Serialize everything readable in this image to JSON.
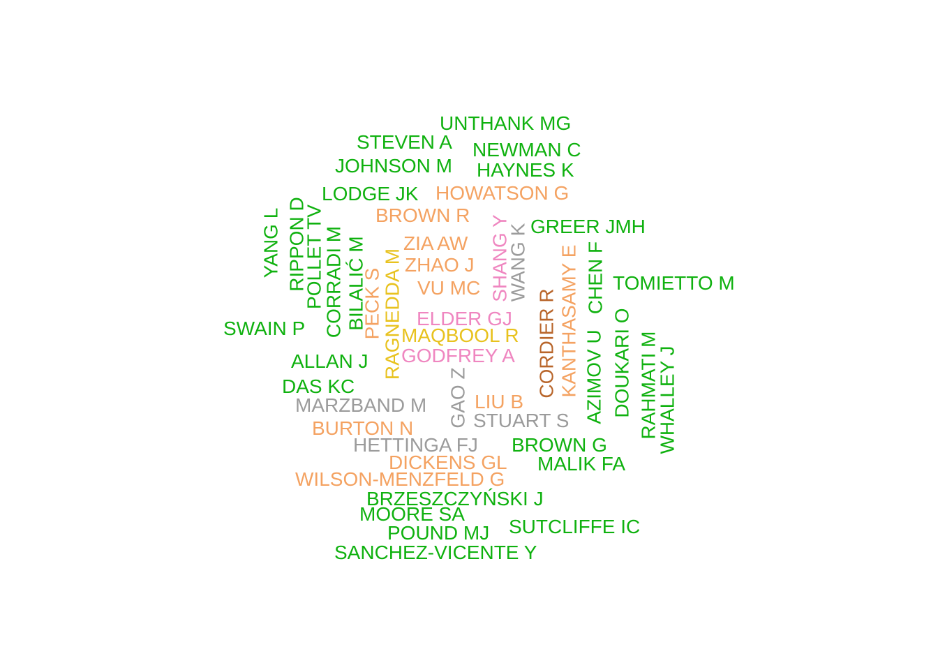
{
  "chart_data": {
    "type": "wordcloud",
    "palette": {
      "green": "#0fb10f",
      "orange": "#f4a261",
      "pink": "#ef86c0",
      "gray": "#9b9b9b",
      "yellow": "#e8c21e",
      "brown": "#b8652a"
    },
    "words": [
      {
        "text": "UNTHANK MG",
        "color": "green"
      },
      {
        "text": "STEVEN A",
        "color": "green"
      },
      {
        "text": "NEWMAN C",
        "color": "green"
      },
      {
        "text": "JOHNSON M",
        "color": "green"
      },
      {
        "text": "HAYNES K",
        "color": "green"
      },
      {
        "text": "LODGE JK",
        "color": "green"
      },
      {
        "text": "HOWATSON G",
        "color": "orange"
      },
      {
        "text": "BROWN R",
        "color": "orange"
      },
      {
        "text": "SHANG Y",
        "color": "pink"
      },
      {
        "text": "WANG K",
        "color": "gray"
      },
      {
        "text": "GREER JMH",
        "color": "green"
      },
      {
        "text": "YANG L",
        "color": "green"
      },
      {
        "text": "RIPPON D",
        "color": "green"
      },
      {
        "text": "POLLET TV",
        "color": "green"
      },
      {
        "text": "CORRADI M",
        "color": "green"
      },
      {
        "text": "BILALIĆ M",
        "color": "green"
      },
      {
        "text": "ZIA AW",
        "color": "orange"
      },
      {
        "text": "ZHAO J",
        "color": "orange"
      },
      {
        "text": "VU MC",
        "color": "orange"
      },
      {
        "text": "RAGNEDDA M",
        "color": "yellow"
      },
      {
        "text": "PECK S",
        "color": "orange"
      },
      {
        "text": "KANTHASAMY E",
        "color": "orange"
      },
      {
        "text": "CHEN F",
        "color": "green"
      },
      {
        "text": "TOMIETTO M",
        "color": "green"
      },
      {
        "text": "CORDIER R",
        "color": "brown"
      },
      {
        "text": "ELDER GJ",
        "color": "pink"
      },
      {
        "text": "SWAIN P",
        "color": "green"
      },
      {
        "text": "MAQBOOL R",
        "color": "yellow"
      },
      {
        "text": "GODFREY A",
        "color": "pink"
      },
      {
        "text": "AZIMOV U",
        "color": "green"
      },
      {
        "text": "DOUKARI O",
        "color": "green"
      },
      {
        "text": "ALLAN J",
        "color": "green"
      },
      {
        "text": "GAO Z",
        "color": "gray"
      },
      {
        "text": "RAHMATI M",
        "color": "green"
      },
      {
        "text": "WHALLEY J",
        "color": "green"
      },
      {
        "text": "DAS KC",
        "color": "green"
      },
      {
        "text": "LIU B",
        "color": "orange"
      },
      {
        "text": "MARZBAND M",
        "color": "gray"
      },
      {
        "text": "STUART S",
        "color": "gray"
      },
      {
        "text": "BURTON N",
        "color": "orange"
      },
      {
        "text": "HETTINGA FJ",
        "color": "gray"
      },
      {
        "text": "BROWN G",
        "color": "green"
      },
      {
        "text": "DICKENS GL",
        "color": "orange"
      },
      {
        "text": "MALIK FA",
        "color": "green"
      },
      {
        "text": "WILSON-MENZFELD G",
        "color": "orange"
      },
      {
        "text": "BRZESZCZYŃSKI J",
        "color": "green"
      },
      {
        "text": "MOORE SA",
        "color": "green"
      },
      {
        "text": "SUTCLIFFE IC",
        "color": "green"
      },
      {
        "text": "POUND MJ",
        "color": "green"
      },
      {
        "text": "SANCHEZ-VICENTE Y",
        "color": "green"
      }
    ]
  }
}
